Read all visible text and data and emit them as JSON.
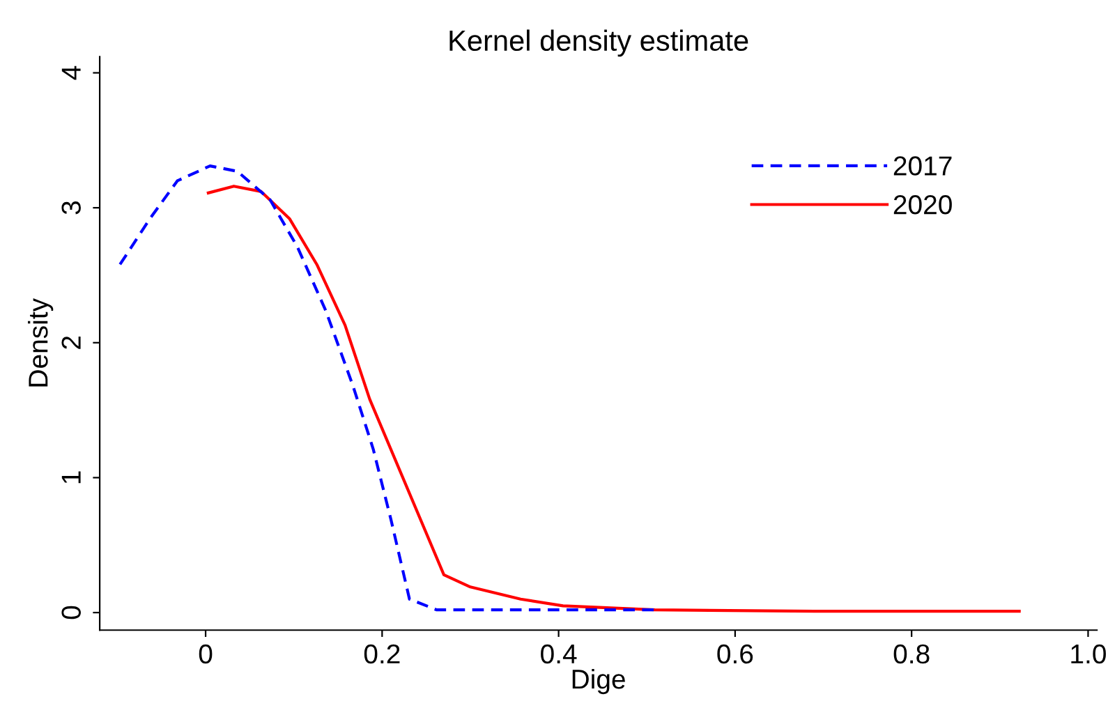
{
  "chart_data": {
    "type": "line",
    "title": "Kernel density estimate",
    "xlabel": "Dige",
    "ylabel": "Density",
    "xlim": [
      -0.12,
      1.01
    ],
    "ylim": [
      -0.13,
      4.12
    ],
    "xticks": [
      {
        "value": 0,
        "label": "0"
      },
      0.2,
      0.4,
      0.6,
      0.8,
      {
        "value": 1.0,
        "label": "1.0"
      }
    ],
    "yticks": [
      0,
      1,
      2,
      3,
      4
    ],
    "legend": "top right",
    "grid": false,
    "series": [
      {
        "name": "2017",
        "color": "#0000ff",
        "line_style": "dashed",
        "x": [
          -0.097,
          -0.063,
          -0.032,
          0.005,
          0.036,
          0.073,
          0.104,
          0.136,
          0.167,
          0.19,
          0.21,
          0.231,
          0.262,
          0.35,
          0.509
        ],
        "values": [
          2.58,
          2.92,
          3.2,
          3.31,
          3.27,
          3.06,
          2.71,
          2.24,
          1.68,
          1.21,
          0.69,
          0.1,
          0.02,
          0.02,
          0.02
        ]
      },
      {
        "name": "2020",
        "color": "#ff0000",
        "line_style": "solid",
        "x": [
          0.003,
          0.032,
          0.063,
          0.095,
          0.126,
          0.158,
          0.186,
          0.27,
          0.3,
          0.357,
          0.405,
          0.509,
          0.69,
          0.922
        ],
        "values": [
          3.11,
          3.16,
          3.12,
          2.92,
          2.58,
          2.13,
          1.58,
          0.28,
          0.19,
          0.1,
          0.05,
          0.02,
          0.01,
          0.01
        ]
      }
    ]
  }
}
